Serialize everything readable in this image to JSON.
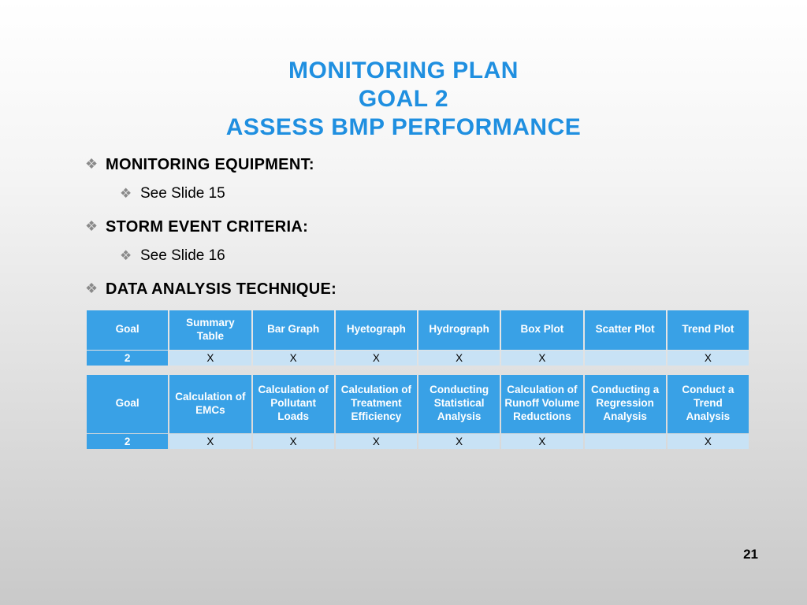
{
  "title": {
    "line1": "MONITORING PLAN",
    "line2": "GOAL 2",
    "line3": "ASSESS BMP PERFORMANCE"
  },
  "bullets": {
    "b1_label": "MONITORING EQUIPMENT:",
    "b1_sub": "See Slide 15",
    "b2_label": "STORM EVENT CRITERIA:",
    "b2_sub": "See Slide 16",
    "b3_label": "DATA ANALYSIS TECHNIQUE:"
  },
  "table1": {
    "columns": [
      "Goal",
      "Summary Table",
      "Bar Graph",
      "Hyetograph",
      "Hydrograph",
      "Box Plot",
      "Scatter Plot",
      "Trend Plot"
    ],
    "row": [
      "2",
      "X",
      "X",
      "X",
      "X",
      "X",
      "",
      "X"
    ]
  },
  "table2": {
    "columns": [
      "Goal",
      "Calculation of EMCs",
      "Calculation of Pollutant Loads",
      "Calculation of Treatment Efficiency",
      "Conducting Statistical Analysis",
      "Calculation of Runoff Volume Reductions",
      "Conducting a Regression Analysis",
      "Conduct a Trend Analysis"
    ],
    "row": [
      "2",
      "X",
      "X",
      "X",
      "X",
      "X",
      "",
      "X"
    ]
  },
  "page_number": "21",
  "colors": {
    "title": "#1f8fe0",
    "table_header_bg": "#39a1e6",
    "table_header_fg": "#ffffff",
    "table_cell_bg": "#c8e2f5",
    "bullet_icon": "#8a8a8a"
  }
}
